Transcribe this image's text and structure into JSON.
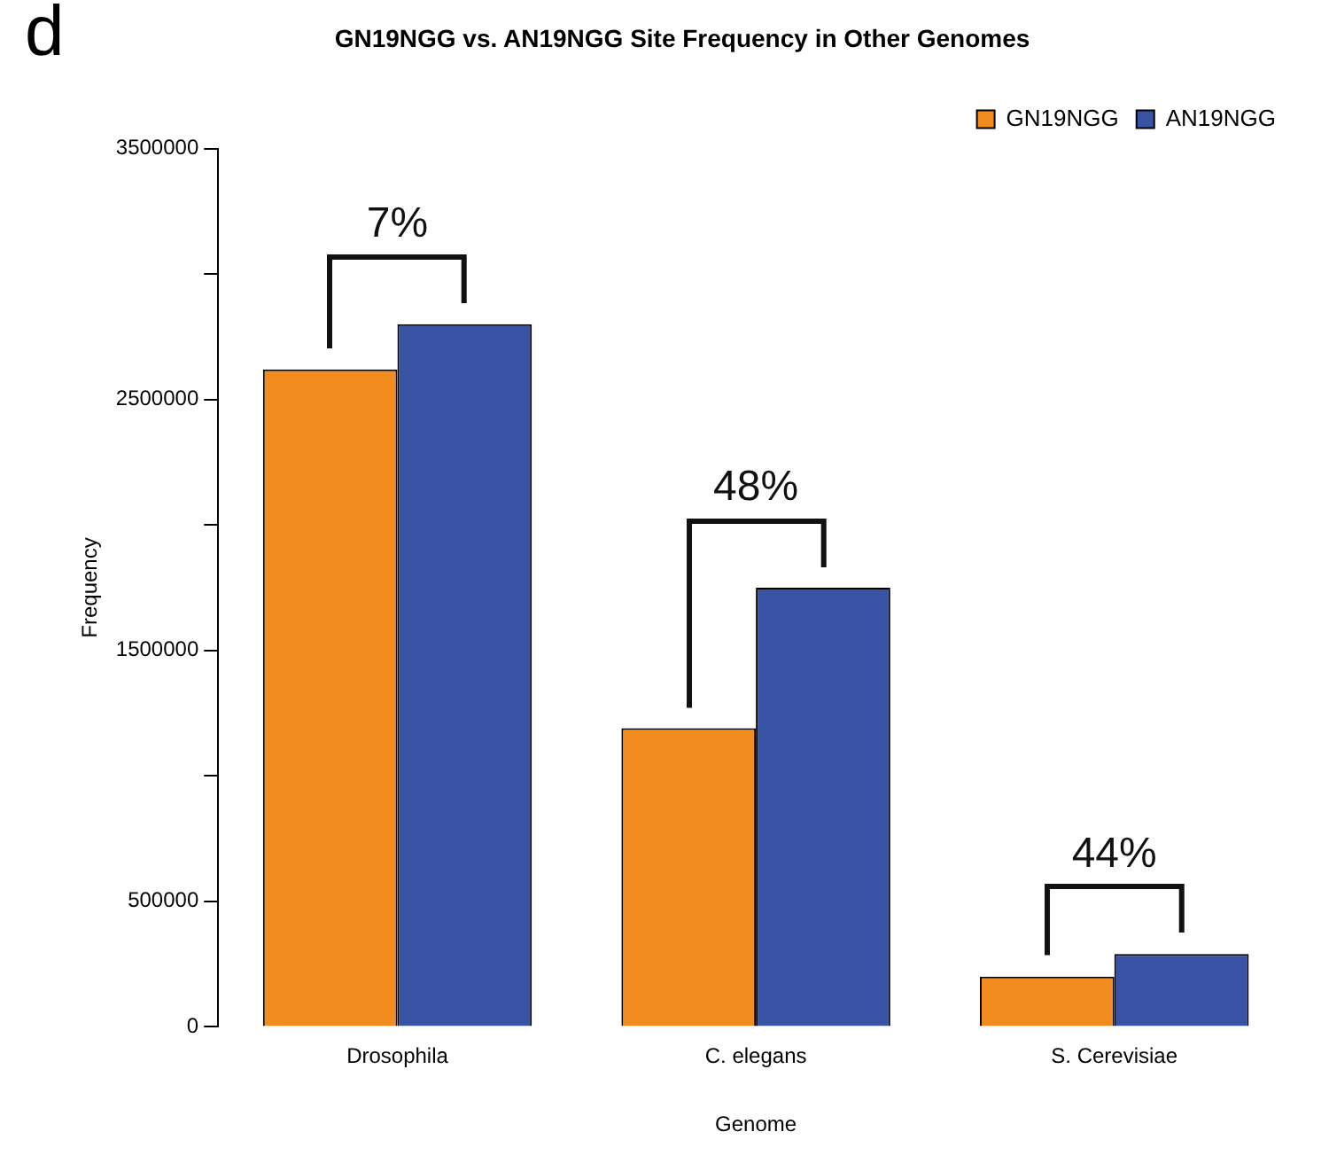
{
  "chart_data": {
    "type": "bar",
    "title": "GN19NGG vs. AN19NGG Site Frequency in Other Genomes",
    "xlabel": "Genome",
    "ylabel": "Frequency",
    "categories": [
      "Drosophila",
      "C. elegans",
      "S. Cerevisiae"
    ],
    "series": [
      {
        "name": "GN19NGG",
        "color": "#f28c1e",
        "values": [
          2620000,
          1190000,
          200000
        ]
      },
      {
        "name": "AN19NGG",
        "color": "#3853a4",
        "values": [
          2800000,
          1750000,
          290000
        ]
      }
    ],
    "ylim": [
      0,
      3500000
    ],
    "yticks": [
      0,
      500000,
      {
        "value": 1000000,
        "label": null
      },
      1500000,
      {
        "value": 2000000,
        "label": null
      },
      2500000,
      {
        "value": 3000000,
        "label": null
      },
      3500000
    ],
    "grid": false,
    "legend": "top right",
    "annotations": [
      "d",
      "7%",
      "48%",
      "44%"
    ]
  }
}
